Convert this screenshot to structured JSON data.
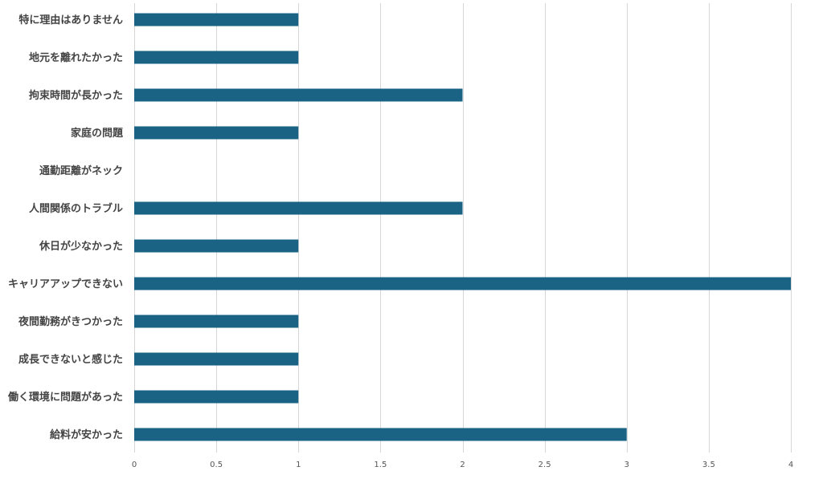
{
  "chart_data": {
    "type": "bar",
    "orientation": "horizontal",
    "categories": [
      "特に理由はありません",
      "地元を離れたかった",
      "拘束時間が長かった",
      "家庭の問題",
      "通勤距離がネック",
      "人間関係のトラブル",
      "休日が少なかった",
      "キャリアアップできない",
      "夜間勤務がきつかった",
      "成長できないと感じた",
      "働く環境に問題があった",
      "給料が安かった"
    ],
    "values": [
      1,
      1,
      2,
      1,
      0,
      2,
      1,
      4,
      1,
      1,
      1,
      3
    ],
    "xticks": [
      "0",
      "0.5",
      "1",
      "1.5",
      "2",
      "2.5",
      "3",
      "3.5",
      "4"
    ],
    "xlim": [
      0,
      4
    ],
    "grid": true,
    "legend": "none",
    "title": "",
    "xlabel": "",
    "ylabel": "",
    "bar_color": "#1a6385"
  }
}
